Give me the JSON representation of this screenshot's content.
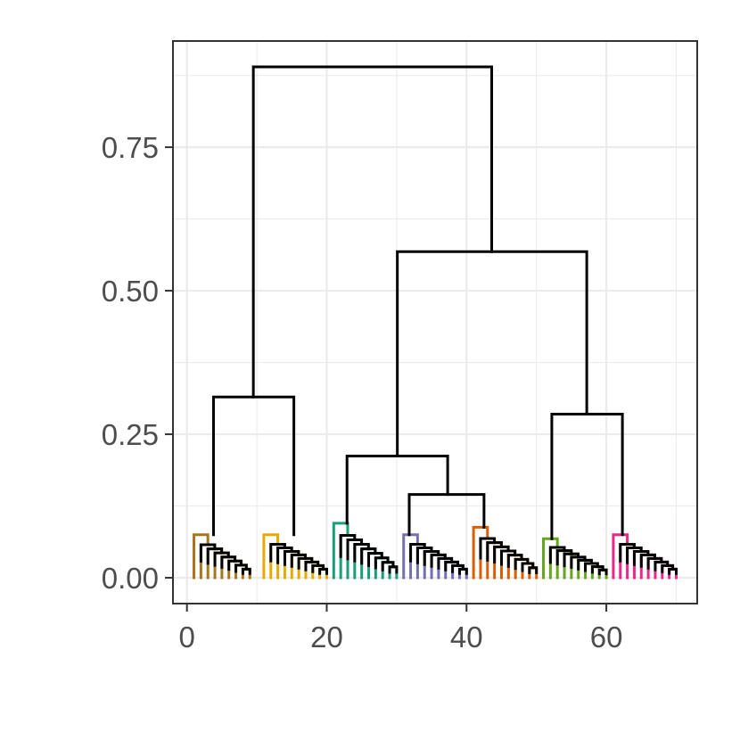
{
  "chart_data": {
    "type": "dendrogram",
    "title": "",
    "xlabel": "",
    "ylabel": "",
    "xlim": [
      -2,
      73
    ],
    "ylim": [
      -0.045,
      0.935
    ],
    "x_ticks": [
      0,
      20,
      40,
      60
    ],
    "x_tick_labels": [
      "0",
      "20",
      "40",
      "60"
    ],
    "y_ticks": [
      0.0,
      0.25,
      0.5,
      0.75
    ],
    "y_tick_labels": [
      "0.00",
      "0.25",
      "0.50",
      "0.75"
    ],
    "grid": true,
    "legend": "none",
    "clusters": [
      {
        "color": "#A6761D",
        "leaves": [
          1,
          9
        ],
        "height": 0.075
      },
      {
        "color": "#E6AB02",
        "leaves": [
          11,
          20
        ],
        "height": 0.075
      },
      {
        "color": "#1B9E77",
        "leaves": [
          21,
          30
        ],
        "height": 0.095
      },
      {
        "color": "#7570B3",
        "leaves": [
          31,
          40
        ],
        "height": 0.075
      },
      {
        "color": "#D95F02",
        "leaves": [
          41,
          50
        ],
        "height": 0.088
      },
      {
        "color": "#66A61E",
        "leaves": [
          51,
          60
        ],
        "height": 0.068
      },
      {
        "color": "#E7298A",
        "leaves": [
          61,
          70
        ],
        "height": 0.075
      }
    ],
    "merges": [
      {
        "left_x": 3.8,
        "right_x": 15.3,
        "height": 0.315
      },
      {
        "left_x": 22.9,
        "right_x": 37.3,
        "height": 0.212
      },
      {
        "left_x": 31.8,
        "right_x": 42.5,
        "height": 0.145
      },
      {
        "left_x": 52.2,
        "right_x": 62.3,
        "height": 0.285
      },
      {
        "left_x": 30.1,
        "right_x": 57.2,
        "height": 0.568
      },
      {
        "left_x": 9.5,
        "right_x": 43.6,
        "height": 0.89
      }
    ],
    "colors": {
      "grid": "#ebebeb",
      "panel_border": "#333333",
      "tick": "#333333",
      "tick_label": "#4d4d4d",
      "branch": "#000000"
    }
  }
}
